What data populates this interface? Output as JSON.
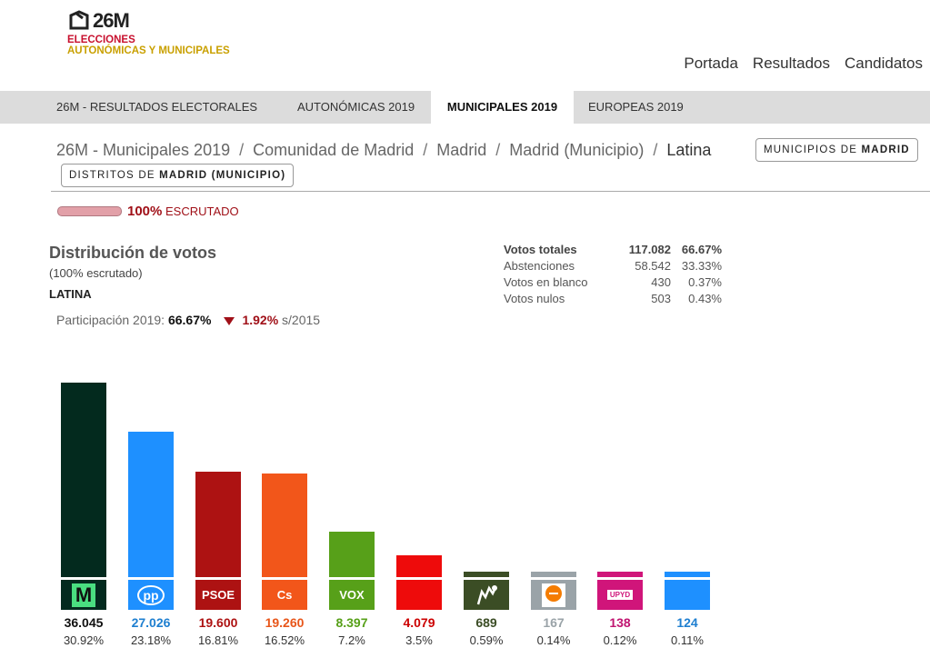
{
  "header": {
    "logo_num": "26M",
    "logo_line1": "ELECCIONES",
    "logo_line2": "AUTONÓMICAS Y MUNICIPALES",
    "nav": [
      "Portada",
      "Resultados",
      "Candidatos"
    ]
  },
  "tabs": [
    {
      "label": "26M - RESULTADOS ELECTORALES",
      "active": false
    },
    {
      "label": "AUTONÓMICAS 2019",
      "active": false
    },
    {
      "label": "MUNICIPALES 2019",
      "active": true
    },
    {
      "label": "EUROPEAS 2019",
      "active": false
    }
  ],
  "breadcrumb": [
    "26M - Municipales 2019",
    "Comunidad de Madrid",
    "Madrid",
    "Madrid (Municipio)",
    "Latina"
  ],
  "buttons": {
    "municipios_pre": "MUNICIPIOS DE ",
    "municipios_bold": "MADRID",
    "distritos_pre": "DISTRITOS DE ",
    "distritos_bold": "MADRID (MUNICIPIO)"
  },
  "progress": {
    "fraction": 1.0,
    "pct_label": "100%",
    "label": "ESCRUTADO"
  },
  "section": {
    "title": "Distribución de votos",
    "subtitle": "(100% escrutado)",
    "area": "LATINA",
    "participation_label": "Participación 2019:",
    "participation_value": "66.67%",
    "change_value": "1.92%",
    "change_suffix": "s/2015"
  },
  "stats": [
    {
      "label": "Votos totales",
      "value": "117.082",
      "pct": "66.67%"
    },
    {
      "label": "Abstenciones",
      "value": "58.542",
      "pct": "33.33%"
    },
    {
      "label": "Votos en blanco",
      "value": "430",
      "pct": "0.37%"
    },
    {
      "label": "Votos nulos",
      "value": "503",
      "pct": "0.43%"
    }
  ],
  "chart_data": {
    "type": "bar",
    "parties": [
      {
        "logo_text": "M",
        "icon": "mas-madrid-logo",
        "color": "#032a1e",
        "value_color": "#111111",
        "votes": 36045,
        "votes_label": "36.045",
        "pct": "30.92%"
      },
      {
        "logo_text": "pp",
        "icon": "pp-logo",
        "color": "#1e90ff",
        "value_color": "#1e7fd0",
        "votes": 27026,
        "votes_label": "27.026",
        "pct": "23.18%"
      },
      {
        "logo_text": "PSOE",
        "icon": "psoe-logo",
        "color": "#ad1212",
        "value_color": "#ad1212",
        "votes": 19600,
        "votes_label": "19.600",
        "pct": "16.81%"
      },
      {
        "logo_text": "Cs",
        "icon": "cs-logo",
        "color": "#f2561a",
        "value_color": "#e8561a",
        "votes": 19260,
        "votes_label": "19.260",
        "pct": "16.52%"
      },
      {
        "logo_text": "VOX",
        "icon": "vox-logo",
        "color": "#57a019",
        "value_color": "#57a019",
        "votes": 8397,
        "votes_label": "8.397",
        "pct": "7.2%"
      },
      {
        "logo_text": "",
        "icon": "party-logo",
        "color": "#ee0b0b",
        "value_color": "#cc0000",
        "votes": 4079,
        "votes_label": "4.079",
        "pct": "3.5%"
      },
      {
        "logo_text": "",
        "icon": "pacma-logo",
        "color": "#3b4d25",
        "value_color": "#3b4d25",
        "votes": 689,
        "votes_label": "689",
        "pct": "0.59%"
      },
      {
        "logo_text": "",
        "icon": "party-logo",
        "color": "#9aa3a8",
        "value_color": "#9aa3a8",
        "votes": 167,
        "votes_label": "167",
        "pct": "0.14%"
      },
      {
        "logo_text": "UPYD",
        "icon": "upyd-logo",
        "color": "#d0157a",
        "value_color": "#c01470",
        "votes": 138,
        "votes_label": "138",
        "pct": "0.12%"
      },
      {
        "logo_text": "",
        "icon": "party-logo",
        "color": "#1e90ff",
        "value_color": "#1e7fd0",
        "votes": 124,
        "votes_label": "124",
        "pct": "0.11%"
      }
    ]
  }
}
